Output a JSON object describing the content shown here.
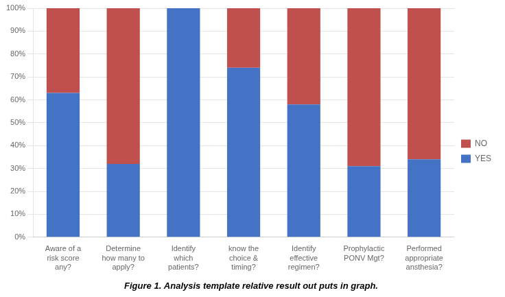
{
  "chart_data": {
    "type": "bar",
    "title": "Figure 1. Analysis template relative result out puts in graph.",
    "categories": [
      "Aware of a\nrisk score\nany?",
      "Determine\nhow many to\napply?",
      "Identify\nwhich\npatients?",
      "know the\nchoice &\ntiming?",
      "Identify\neffective\nregimen?",
      "Prophylactic\nPONV Mgt?",
      "Performed\nappropriate\nansthesia?"
    ],
    "series": [
      {
        "name": "YES",
        "color": "#4472C4",
        "values": [
          63,
          32,
          100,
          74,
          58,
          31,
          34
        ]
      },
      {
        "name": "NO",
        "color": "#C0504D",
        "values": [
          37,
          68,
          0,
          26,
          42,
          69,
          66
        ]
      }
    ],
    "stacked": true,
    "ylim": [
      0,
      100
    ],
    "yticks": [
      {
        "value": 0,
        "label": "0%"
      },
      {
        "value": 10,
        "label": "10%"
      },
      {
        "value": 20,
        "label": "20%"
      },
      {
        "value": 30,
        "label": "30%"
      },
      {
        "value": 40,
        "label": "40%"
      },
      {
        "value": 50,
        "label": "50%"
      },
      {
        "value": 60,
        "label": "60%"
      },
      {
        "value": 70,
        "label": "70%"
      },
      {
        "value": 80,
        "label": "80%"
      },
      {
        "value": 90,
        "label": "90%"
      },
      {
        "value": 100,
        "label": "100%"
      }
    ],
    "grid": true,
    "legend": "right"
  }
}
